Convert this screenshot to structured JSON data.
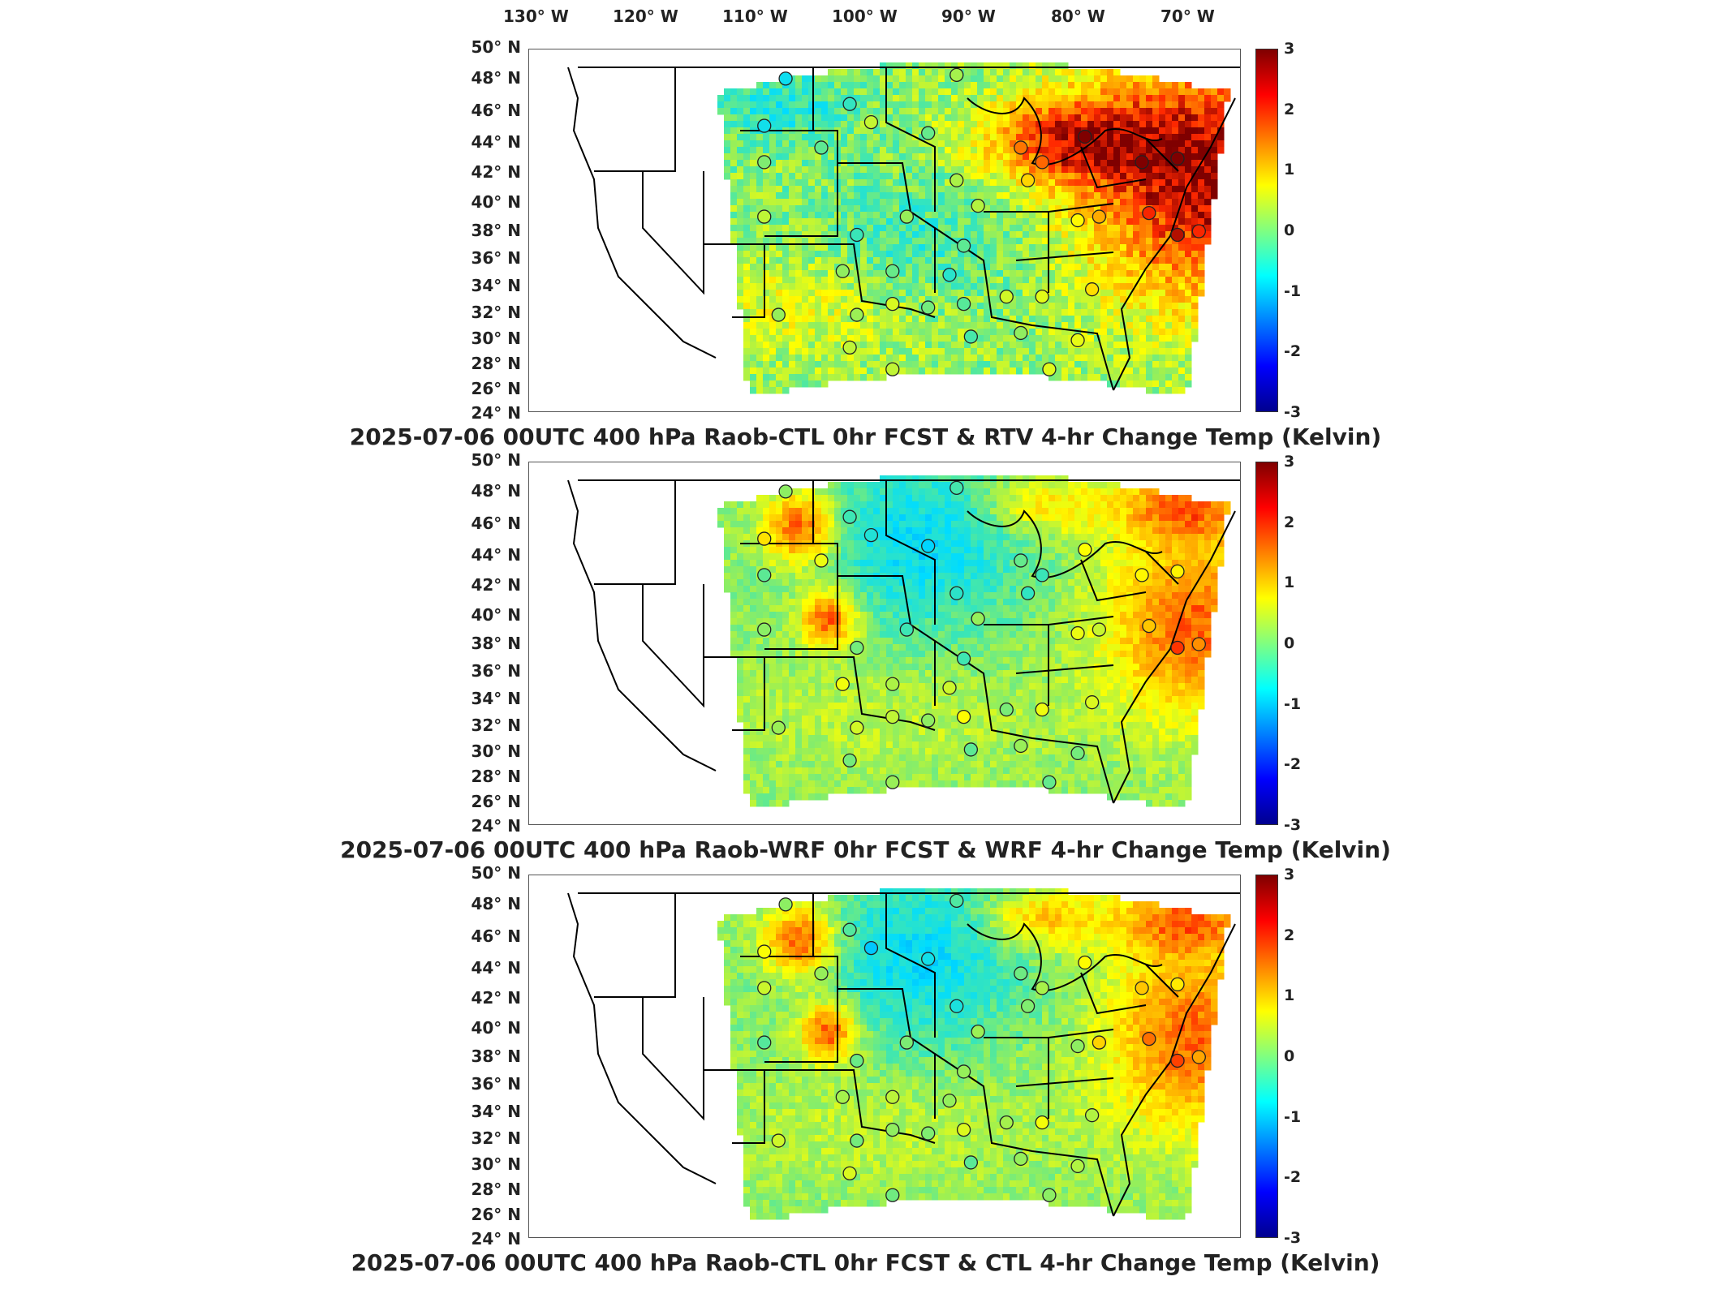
{
  "lon_labels": [
    "130° W",
    "120° W",
    "110° W",
    "100° W",
    "90° W",
    "80° W",
    "70° W"
  ],
  "lat_labels": [
    "50° N",
    "48° N",
    "46° N",
    "44° N",
    "42° N",
    "40° N",
    "38° N",
    "36° N",
    "34° N",
    "32° N",
    "30° N",
    "28° N",
    "26° N",
    "24° N"
  ],
  "colorbar_ticks": [
    "3",
    "2",
    "1",
    "0",
    "-1",
    "-2",
    "-3"
  ],
  "colorbar_colors": [
    "#7f0000",
    "#ff0000",
    "#ff8000",
    "#ffff00",
    "#80ff80",
    "#00ffff",
    "#0080ff",
    "#0000ff",
    "#00008f"
  ],
  "panels": [
    {
      "title": "2025-07-06 00UTC 400 hPa Raob-CTL 0hr FCST & RTV 4-hr Change Temp (Kelvin)"
    },
    {
      "title": "2025-07-06 00UTC 400 hPa Raob-WRF 0hr FCST & WRF 4-hr Change Temp (Kelvin)"
    },
    {
      "title": "2025-07-06 00UTC 400 hPa Raob-CTL 0hr FCST & CTL 4-hr Change Temp (Kelvin)"
    }
  ]
}
